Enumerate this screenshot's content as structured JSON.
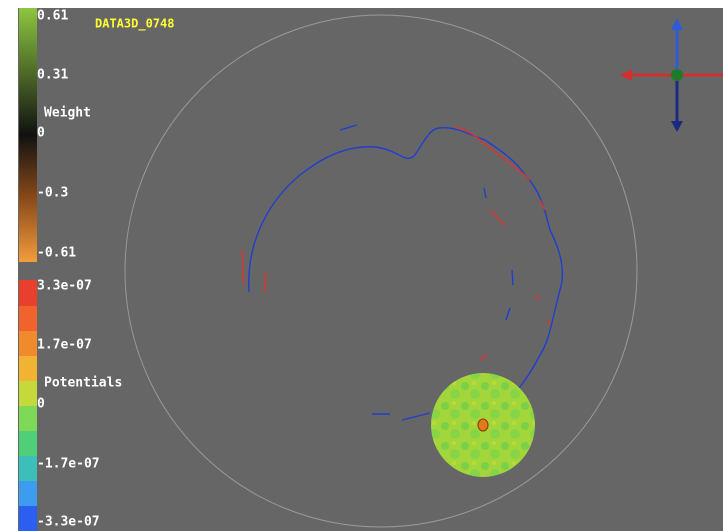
{
  "title": "DATA3D_0748",
  "weight_bar": {
    "label": "Weight",
    "ticks": [
      "0.61",
      "0.31",
      "0",
      "-0.3",
      "-0.61"
    ]
  },
  "potentials_bar": {
    "label": "Potentials",
    "ticks": [
      "3.3e-07",
      "1.7e-07",
      "0",
      "-1.7e-07",
      "-3.3e-07"
    ]
  }
}
